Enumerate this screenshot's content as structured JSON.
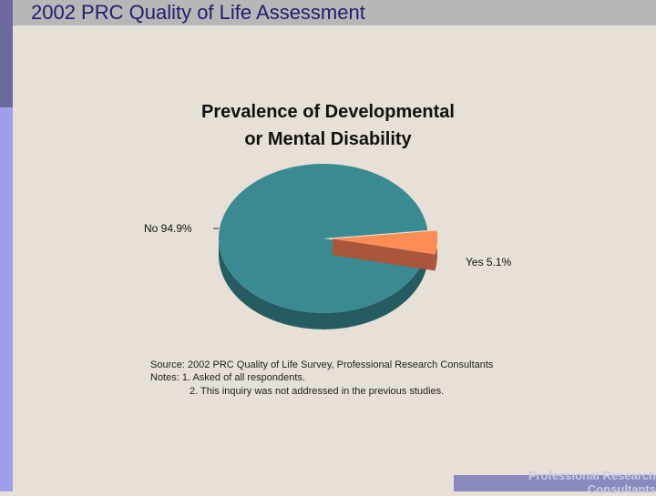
{
  "slide": {
    "title": "2002 PRC Quality of Life Assessment"
  },
  "chart_data": {
    "type": "pie",
    "title": "Prevalence of Developmental or Mental Disability",
    "title_lines": [
      "Prevalence of Developmental",
      "or Mental Disability"
    ],
    "categories": [
      "No",
      "Yes"
    ],
    "values": [
      94.9,
      5.1
    ],
    "labels": [
      "94.9%",
      "5.1%"
    ],
    "colors": [
      "#3a8a92",
      "#ff8c55"
    ],
    "dark_colors": [
      "#255c61",
      "#a9563a"
    ]
  },
  "notes": {
    "source": "Source: 2002 PRC Quality of Life Survey, Professional Research Consultants",
    "line1": "Notes:   1. Asked of all respondents.",
    "line2": "2. This inquiry was not addressed in the previous studies."
  },
  "footer": {
    "brand": "Professional Research Consultants"
  }
}
